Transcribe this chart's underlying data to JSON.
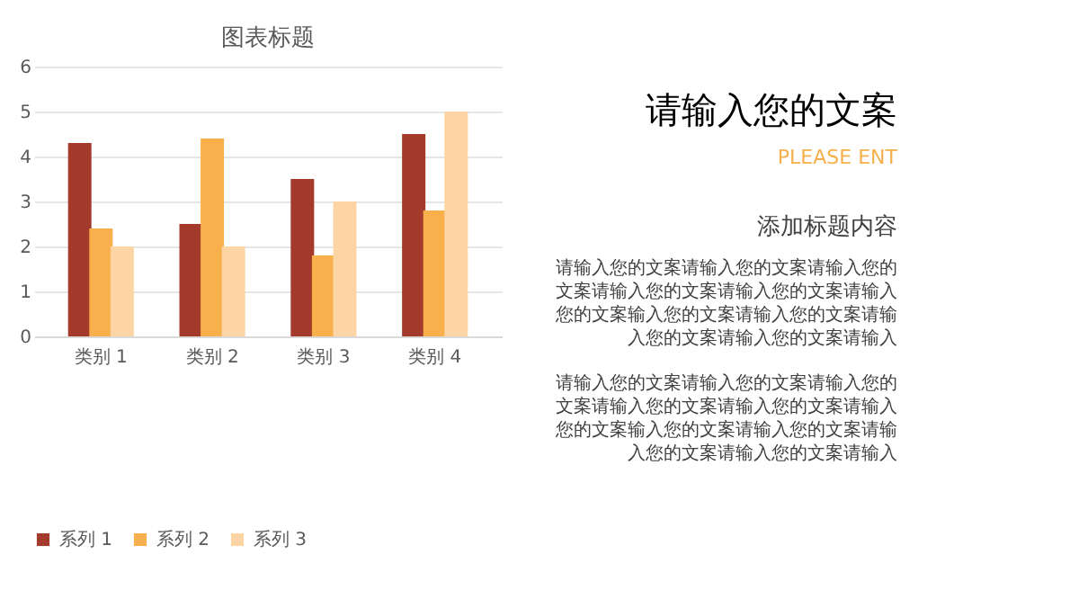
{
  "chart_data": {
    "type": "bar",
    "title": "图表标题",
    "categories": [
      "类别 1",
      "类别 2",
      "类别 3",
      "类别 4"
    ],
    "series": [
      {
        "name": "系列 1",
        "color": "#a33a2c",
        "values": [
          4.3,
          2.5,
          3.5,
          4.5
        ]
      },
      {
        "name": "系列 2",
        "color": "#f8b04c",
        "values": [
          2.4,
          4.4,
          1.8,
          2.8
        ]
      },
      {
        "name": "系列 3",
        "color": "#fdd5a5",
        "values": [
          2,
          2,
          3,
          5
        ]
      }
    ],
    "ylim": [
      0,
      6
    ],
    "yticks": [
      0,
      1,
      2,
      3,
      4,
      5,
      6
    ],
    "grid": "y",
    "legend": "bottom",
    "annotations": [
      "请输入您的文案",
      "PLEASE ENT",
      "添加标题内容",
      "请输入您的文案请输入您的文案请输入您的文案请输入您的文案请输入您的文案请输入您的文案输入您的文案请输入您的文案请输入您的文案请输入您的文案请输入",
      "请输入您的文案请输入您的文案请输入您的文案请输入您的文案请输入您的文案请输入您的文案输入您的文案请输入您的文案请输入您的文案请输入您的文案请输入"
    ]
  }
}
